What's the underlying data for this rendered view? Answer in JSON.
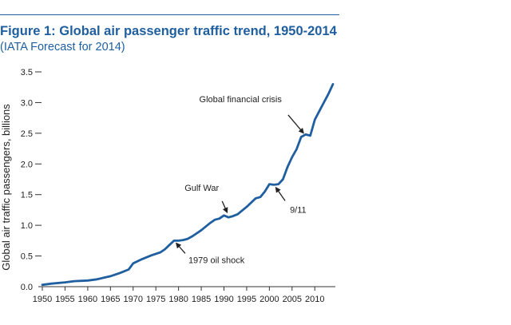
{
  "chart_data": {
    "type": "line",
    "title": "Figure 1: Global air passenger traffic trend, 1950-2014",
    "subtitle": "(IATA Forecast for 2014)",
    "xlabel": "",
    "ylabel": "Global air traffic passengers, billions",
    "xlim": [
      1950,
      2014
    ],
    "ylim": [
      0,
      3.5
    ],
    "x_ticks": [
      1950,
      1955,
      1960,
      1965,
      1970,
      1975,
      1980,
      1985,
      1990,
      1995,
      2000,
      2005,
      2010
    ],
    "y_ticks": [
      0.0,
      0.5,
      1.0,
      1.5,
      2.0,
      2.5,
      3.0,
      3.5
    ],
    "y_tick_labels": [
      "0.0",
      "0.5",
      "1.0",
      "1.5",
      "2.0",
      "2.5",
      "3.0",
      "3.5"
    ],
    "grid": false,
    "color": "#1f5fa0",
    "series": [
      {
        "x": [
          1950,
          1952,
          1955,
          1957,
          1960,
          1962,
          1965,
          1967,
          1969,
          1970,
          1972,
          1974,
          1976,
          1977,
          1978,
          1979,
          1980,
          1981,
          1982,
          1983,
          1985,
          1987,
          1988,
          1989,
          1990,
          1991,
          1992,
          1993,
          1995,
          1997,
          1998,
          1999,
          2000,
          2001,
          2002,
          2003,
          2004,
          2005,
          2006,
          2007,
          2008,
          2009,
          2010,
          2011,
          2012,
          2013,
          2014
        ],
        "y": [
          0.03,
          0.05,
          0.07,
          0.09,
          0.1,
          0.12,
          0.17,
          0.22,
          0.28,
          0.38,
          0.45,
          0.51,
          0.56,
          0.61,
          0.68,
          0.75,
          0.75,
          0.76,
          0.78,
          0.82,
          0.92,
          1.04,
          1.09,
          1.11,
          1.16,
          1.13,
          1.15,
          1.18,
          1.3,
          1.44,
          1.46,
          1.55,
          1.67,
          1.66,
          1.67,
          1.75,
          1.95,
          2.11,
          2.24,
          2.44,
          2.48,
          2.46,
          2.72,
          2.86,
          3.0,
          3.14,
          3.3
        ]
      }
    ],
    "annotations": [
      {
        "text": "Global financial crisis",
        "x": 2008,
        "y": 2.46
      },
      {
        "text": "Gulf War",
        "x": 1991,
        "y": 1.16
      },
      {
        "text": "9/11",
        "x": 2001,
        "y": 1.66
      },
      {
        "text": "1979 oil shock",
        "x": 1979,
        "y": 0.75
      }
    ]
  }
}
